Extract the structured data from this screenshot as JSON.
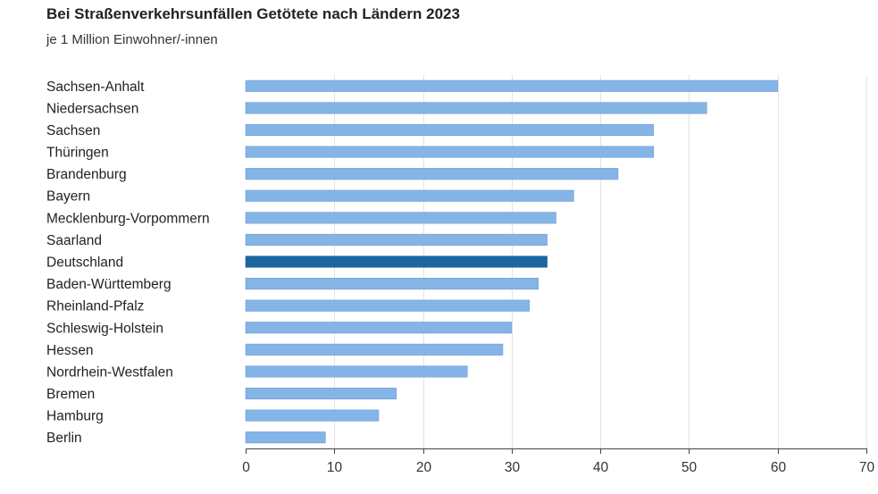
{
  "chart_data": {
    "type": "bar",
    "orientation": "horizontal",
    "title": "Bei Straßenverkehrsunfällen Getötete nach Ländern 2023",
    "subtitle": "je 1 Million Einwohner/-innen",
    "categories": [
      "Sachsen-Anhalt",
      "Niedersachsen",
      "Sachsen",
      "Thüringen",
      "Brandenburg",
      "Bayern",
      "Mecklenburg-Vorpommern",
      "Saarland",
      "Deutschland",
      "Baden-Württemberg",
      "Rheinland-Pfalz",
      "Schleswig-Holstein",
      "Hessen",
      "Nordrhein-Westfalen",
      "Bremen",
      "Hamburg",
      "Berlin"
    ],
    "values": [
      60,
      52,
      46,
      46,
      42,
      37,
      35,
      34,
      34,
      33,
      32,
      30,
      29,
      25,
      17,
      15,
      9
    ],
    "highlight_category": "Deutschland",
    "xlim": [
      0,
      70
    ],
    "xticks": [
      0,
      10,
      20,
      30,
      40,
      50,
      60,
      70
    ],
    "grid": "vertical",
    "legend": "none",
    "colors": {
      "bar": "#85b4e6",
      "bar_stroke": "#6f9fd4",
      "highlight": "#1b66a0",
      "grid": "#e3e3e3",
      "axis": "#444444"
    }
  }
}
